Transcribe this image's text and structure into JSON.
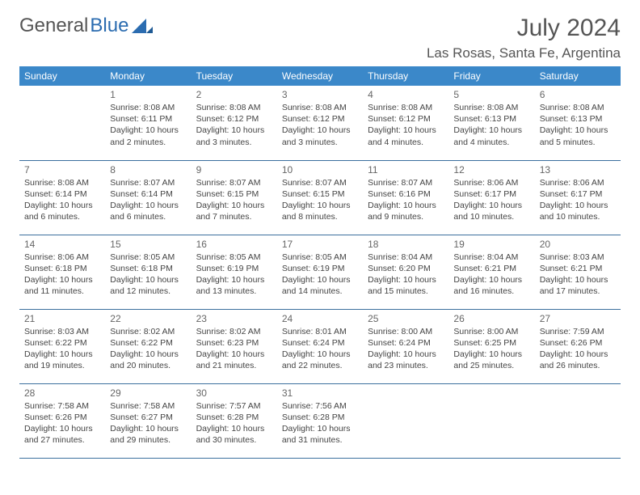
{
  "logo": {
    "text1": "General",
    "text2": "Blue"
  },
  "header": {
    "month_year": "July 2024",
    "location": "Las Rosas, Santa Fe, Argentina"
  },
  "colors": {
    "header_bg": "#3b88c9",
    "header_fg": "#ffffff",
    "row_border": "#3b6f9e",
    "text": "#444444",
    "logo_gray": "#555555",
    "logo_blue": "#2b6cb0"
  },
  "weekdays": [
    "Sunday",
    "Monday",
    "Tuesday",
    "Wednesday",
    "Thursday",
    "Friday",
    "Saturday"
  ],
  "weeks": [
    [
      null,
      {
        "n": "1",
        "sr": "Sunrise: 8:08 AM",
        "ss": "Sunset: 6:11 PM",
        "d1": "Daylight: 10 hours",
        "d2": "and 2 minutes."
      },
      {
        "n": "2",
        "sr": "Sunrise: 8:08 AM",
        "ss": "Sunset: 6:12 PM",
        "d1": "Daylight: 10 hours",
        "d2": "and 3 minutes."
      },
      {
        "n": "3",
        "sr": "Sunrise: 8:08 AM",
        "ss": "Sunset: 6:12 PM",
        "d1": "Daylight: 10 hours",
        "d2": "and 3 minutes."
      },
      {
        "n": "4",
        "sr": "Sunrise: 8:08 AM",
        "ss": "Sunset: 6:12 PM",
        "d1": "Daylight: 10 hours",
        "d2": "and 4 minutes."
      },
      {
        "n": "5",
        "sr": "Sunrise: 8:08 AM",
        "ss": "Sunset: 6:13 PM",
        "d1": "Daylight: 10 hours",
        "d2": "and 4 minutes."
      },
      {
        "n": "6",
        "sr": "Sunrise: 8:08 AM",
        "ss": "Sunset: 6:13 PM",
        "d1": "Daylight: 10 hours",
        "d2": "and 5 minutes."
      }
    ],
    [
      {
        "n": "7",
        "sr": "Sunrise: 8:08 AM",
        "ss": "Sunset: 6:14 PM",
        "d1": "Daylight: 10 hours",
        "d2": "and 6 minutes."
      },
      {
        "n": "8",
        "sr": "Sunrise: 8:07 AM",
        "ss": "Sunset: 6:14 PM",
        "d1": "Daylight: 10 hours",
        "d2": "and 6 minutes."
      },
      {
        "n": "9",
        "sr": "Sunrise: 8:07 AM",
        "ss": "Sunset: 6:15 PM",
        "d1": "Daylight: 10 hours",
        "d2": "and 7 minutes."
      },
      {
        "n": "10",
        "sr": "Sunrise: 8:07 AM",
        "ss": "Sunset: 6:15 PM",
        "d1": "Daylight: 10 hours",
        "d2": "and 8 minutes."
      },
      {
        "n": "11",
        "sr": "Sunrise: 8:07 AM",
        "ss": "Sunset: 6:16 PM",
        "d1": "Daylight: 10 hours",
        "d2": "and 9 minutes."
      },
      {
        "n": "12",
        "sr": "Sunrise: 8:06 AM",
        "ss": "Sunset: 6:17 PM",
        "d1": "Daylight: 10 hours",
        "d2": "and 10 minutes."
      },
      {
        "n": "13",
        "sr": "Sunrise: 8:06 AM",
        "ss": "Sunset: 6:17 PM",
        "d1": "Daylight: 10 hours",
        "d2": "and 10 minutes."
      }
    ],
    [
      {
        "n": "14",
        "sr": "Sunrise: 8:06 AM",
        "ss": "Sunset: 6:18 PM",
        "d1": "Daylight: 10 hours",
        "d2": "and 11 minutes."
      },
      {
        "n": "15",
        "sr": "Sunrise: 8:05 AM",
        "ss": "Sunset: 6:18 PM",
        "d1": "Daylight: 10 hours",
        "d2": "and 12 minutes."
      },
      {
        "n": "16",
        "sr": "Sunrise: 8:05 AM",
        "ss": "Sunset: 6:19 PM",
        "d1": "Daylight: 10 hours",
        "d2": "and 13 minutes."
      },
      {
        "n": "17",
        "sr": "Sunrise: 8:05 AM",
        "ss": "Sunset: 6:19 PM",
        "d1": "Daylight: 10 hours",
        "d2": "and 14 minutes."
      },
      {
        "n": "18",
        "sr": "Sunrise: 8:04 AM",
        "ss": "Sunset: 6:20 PM",
        "d1": "Daylight: 10 hours",
        "d2": "and 15 minutes."
      },
      {
        "n": "19",
        "sr": "Sunrise: 8:04 AM",
        "ss": "Sunset: 6:21 PM",
        "d1": "Daylight: 10 hours",
        "d2": "and 16 minutes."
      },
      {
        "n": "20",
        "sr": "Sunrise: 8:03 AM",
        "ss": "Sunset: 6:21 PM",
        "d1": "Daylight: 10 hours",
        "d2": "and 17 minutes."
      }
    ],
    [
      {
        "n": "21",
        "sr": "Sunrise: 8:03 AM",
        "ss": "Sunset: 6:22 PM",
        "d1": "Daylight: 10 hours",
        "d2": "and 19 minutes."
      },
      {
        "n": "22",
        "sr": "Sunrise: 8:02 AM",
        "ss": "Sunset: 6:22 PM",
        "d1": "Daylight: 10 hours",
        "d2": "and 20 minutes."
      },
      {
        "n": "23",
        "sr": "Sunrise: 8:02 AM",
        "ss": "Sunset: 6:23 PM",
        "d1": "Daylight: 10 hours",
        "d2": "and 21 minutes."
      },
      {
        "n": "24",
        "sr": "Sunrise: 8:01 AM",
        "ss": "Sunset: 6:24 PM",
        "d1": "Daylight: 10 hours",
        "d2": "and 22 minutes."
      },
      {
        "n": "25",
        "sr": "Sunrise: 8:00 AM",
        "ss": "Sunset: 6:24 PM",
        "d1": "Daylight: 10 hours",
        "d2": "and 23 minutes."
      },
      {
        "n": "26",
        "sr": "Sunrise: 8:00 AM",
        "ss": "Sunset: 6:25 PM",
        "d1": "Daylight: 10 hours",
        "d2": "and 25 minutes."
      },
      {
        "n": "27",
        "sr": "Sunrise: 7:59 AM",
        "ss": "Sunset: 6:26 PM",
        "d1": "Daylight: 10 hours",
        "d2": "and 26 minutes."
      }
    ],
    [
      {
        "n": "28",
        "sr": "Sunrise: 7:58 AM",
        "ss": "Sunset: 6:26 PM",
        "d1": "Daylight: 10 hours",
        "d2": "and 27 minutes."
      },
      {
        "n": "29",
        "sr": "Sunrise: 7:58 AM",
        "ss": "Sunset: 6:27 PM",
        "d1": "Daylight: 10 hours",
        "d2": "and 29 minutes."
      },
      {
        "n": "30",
        "sr": "Sunrise: 7:57 AM",
        "ss": "Sunset: 6:28 PM",
        "d1": "Daylight: 10 hours",
        "d2": "and 30 minutes."
      },
      {
        "n": "31",
        "sr": "Sunrise: 7:56 AM",
        "ss": "Sunset: 6:28 PM",
        "d1": "Daylight: 10 hours",
        "d2": "and 31 minutes."
      },
      null,
      null,
      null
    ]
  ]
}
